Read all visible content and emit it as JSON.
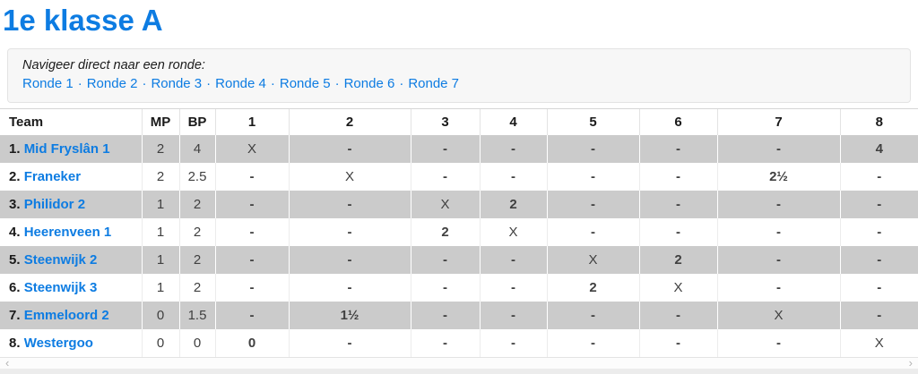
{
  "page": {
    "title": "1e klasse A"
  },
  "nav": {
    "label": "Navigeer direct naar een ronde:",
    "separator": "·",
    "links": [
      "Ronde 1",
      "Ronde 2",
      "Ronde 3",
      "Ronde 4",
      "Ronde 5",
      "Ronde 6",
      "Ronde 7"
    ]
  },
  "table": {
    "headers": [
      "Team",
      "MP",
      "BP",
      "1",
      "2",
      "3",
      "4",
      "5",
      "6",
      "7",
      "8"
    ],
    "rows": [
      {
        "rank": "1.",
        "team": "Mid Fryslân 1",
        "mp": "2",
        "bp": "4",
        "results": [
          "X",
          "-",
          "-",
          "-",
          "-",
          "-",
          "-",
          "4"
        ]
      },
      {
        "rank": "2.",
        "team": "Franeker",
        "mp": "2",
        "bp": "2.5",
        "results": [
          "-",
          "X",
          "-",
          "-",
          "-",
          "-",
          "2½",
          "-"
        ]
      },
      {
        "rank": "3.",
        "team": "Philidor 2",
        "mp": "1",
        "bp": "2",
        "results": [
          "-",
          "-",
          "X",
          "2",
          "-",
          "-",
          "-",
          "-"
        ]
      },
      {
        "rank": "4.",
        "team": "Heerenveen 1",
        "mp": "1",
        "bp": "2",
        "results": [
          "-",
          "-",
          "2",
          "X",
          "-",
          "-",
          "-",
          "-"
        ]
      },
      {
        "rank": "5.",
        "team": "Steenwijk 2",
        "mp": "1",
        "bp": "2",
        "results": [
          "-",
          "-",
          "-",
          "-",
          "X",
          "2",
          "-",
          "-"
        ]
      },
      {
        "rank": "6.",
        "team": "Steenwijk 3",
        "mp": "1",
        "bp": "2",
        "results": [
          "-",
          "-",
          "-",
          "-",
          "2",
          "X",
          "-",
          "-"
        ]
      },
      {
        "rank": "7.",
        "team": "Emmeloord 2",
        "mp": "0",
        "bp": "1.5",
        "results": [
          "-",
          "1½",
          "-",
          "-",
          "-",
          "-",
          "X",
          "-"
        ]
      },
      {
        "rank": "8.",
        "team": "Westergoo",
        "mp": "0",
        "bp": "0",
        "results": [
          "0",
          "-",
          "-",
          "-",
          "-",
          "-",
          "-",
          "X"
        ]
      }
    ]
  },
  "scrollbar": {
    "left": "‹",
    "right": "›"
  },
  "colors": {
    "accent": "#0d7ce2",
    "dash": "#4e9cf3",
    "stripe": "#cbcbcb",
    "score": "#2176e0"
  }
}
